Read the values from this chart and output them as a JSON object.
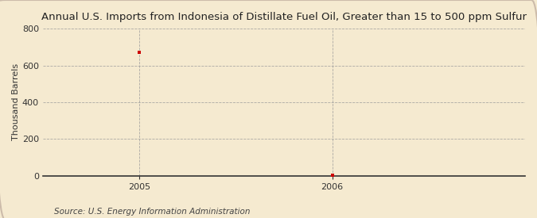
{
  "title": "Annual U.S. Imports from Indonesia of Distillate Fuel Oil, Greater than 15 to 500 ppm Sulfur",
  "ylabel": "Thousand Barrels",
  "source": "Source: U.S. Energy Information Administration",
  "x": [
    2005,
    2006
  ],
  "y": [
    672,
    3
  ],
  "marker_color": "#cc0000",
  "marker": "s",
  "marker_size": 3.5,
  "ylim": [
    0,
    800
  ],
  "yticks": [
    0,
    200,
    400,
    600,
    800
  ],
  "xlim": [
    2004.5,
    2007.0
  ],
  "xticks": [
    2005,
    2006
  ],
  "background_color": "#f5ead0",
  "plot_bg_color": "#f5ead0",
  "grid_color": "#999999",
  "title_fontsize": 9.5,
  "axis_fontsize": 8,
  "source_fontsize": 7.5,
  "tick_label_color": "#333333"
}
